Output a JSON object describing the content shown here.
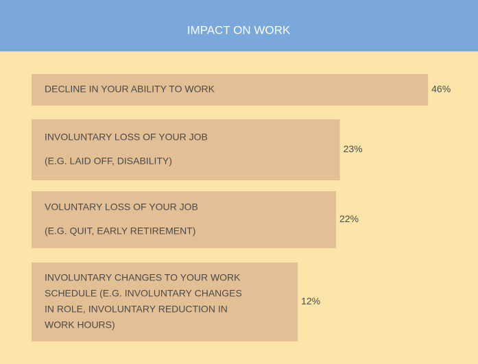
{
  "chart_data": {
    "type": "bar",
    "title": "IMPACT ON WORK",
    "categories": [
      [
        "DECLINE IN YOUR ABILITY TO WORK"
      ],
      [
        "INVOLUNTARY LOSS OF YOUR JOB",
        "(E.G. LAID OFF, DISABILITY)"
      ],
      [
        "VOLUNTARY LOSS OF YOUR JOB",
        "(E.G. QUIT, EARLY RETIREMENT)"
      ],
      [
        "INVOLUNTARY CHANGES TO YOUR WORK",
        "SCHEDULE (E.G. INVOLUNTARY CHANGES",
        "IN ROLE, INVOLUNTARY REDUCTION IN",
        "WORK HOURS)"
      ]
    ],
    "values": [
      46,
      23,
      22,
      12
    ],
    "value_labels": [
      "46%",
      "23%",
      "22%",
      "12%"
    ],
    "color": "#e3bf96"
  }
}
